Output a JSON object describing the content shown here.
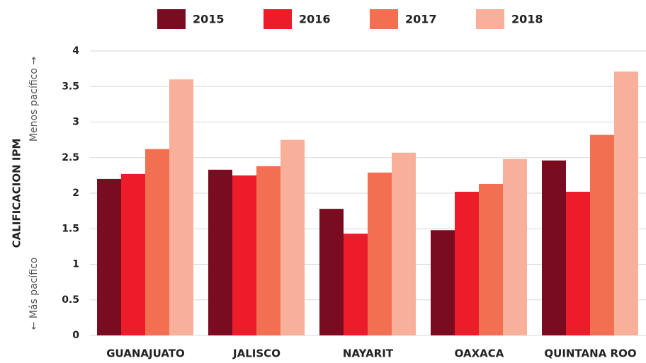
{
  "chart_data": {
    "type": "bar",
    "y_label": "CALIFICACION IPM",
    "annotations": [
      "Menos pacífico →",
      "← Más pacífico"
    ],
    "categories": [
      "GUANAJUATO",
      "JALISCO",
      "NAYARIT",
      "OAXACA",
      "QUINTANA ROO"
    ],
    "series": [
      {
        "name": "2015",
        "color": "#7a0c22",
        "values": [
          2.2,
          2.33,
          1.78,
          1.48,
          2.46
        ]
      },
      {
        "name": "2016",
        "color": "#ec1c2a",
        "values": [
          2.27,
          2.25,
          1.43,
          2.02,
          2.02
        ]
      },
      {
        "name": "2017",
        "color": "#f27052",
        "values": [
          2.62,
          2.38,
          2.29,
          2.13,
          2.82
        ]
      },
      {
        "name": "2018",
        "color": "#f9b09a",
        "values": [
          3.6,
          2.75,
          2.57,
          2.48,
          3.71
        ]
      }
    ],
    "ylim": [
      0,
      4
    ],
    "yticks": [
      0,
      0.5,
      1,
      1.5,
      2,
      2.5,
      3,
      3.5,
      4
    ],
    "grid": true,
    "legend": "top"
  }
}
